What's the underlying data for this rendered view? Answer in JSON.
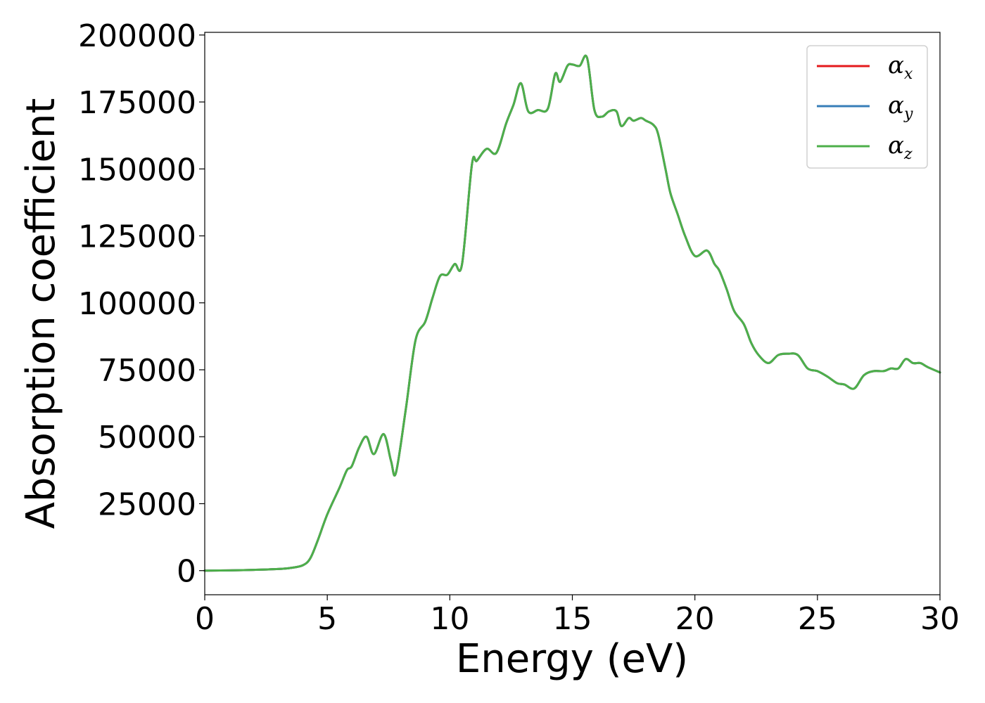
{
  "chart_data": {
    "type": "line",
    "title": "",
    "xlabel": "Energy (eV)",
    "ylabel": "Absorption coefficient",
    "xlim": [
      0,
      30
    ],
    "ylim": [
      -9000,
      201000
    ],
    "xticks": [
      "0",
      "5",
      "10",
      "15",
      "20",
      "25",
      "30"
    ],
    "yticks": [
      "0",
      "25000",
      "50000",
      "75000",
      "100000",
      "125000",
      "150000",
      "175000",
      "200000"
    ],
    "grid": false,
    "legend_position": "top-right",
    "series": [
      {
        "name": "α_x",
        "symbol": "α",
        "subscript": "x",
        "color": "#e41a1c",
        "x": [
          0,
          1,
          2,
          3,
          3.5,
          4,
          4.3,
          4.6,
          5.0,
          5.5,
          5.8,
          6.0,
          6.3,
          6.6,
          6.9,
          7.3,
          7.6,
          7.8,
          8.2,
          8.6,
          9.0,
          9.3,
          9.6,
          9.9,
          10.2,
          10.5,
          10.9,
          11.1,
          11.5,
          11.9,
          12.3,
          12.6,
          12.9,
          13.2,
          13.6,
          14.0,
          14.3,
          14.5,
          14.8,
          15.0,
          15.3,
          15.6,
          15.9,
          16.2,
          16.5,
          16.8,
          17.0,
          17.3,
          17.5,
          17.8,
          18.0,
          18.3,
          18.5,
          18.8,
          19.0,
          19.3,
          19.6,
          20.0,
          20.5,
          20.8,
          21.0,
          21.3,
          21.6,
          22.0,
          22.3,
          22.6,
          23.0,
          23.4,
          23.8,
          24.2,
          24.6,
          25.0,
          25.4,
          25.8,
          26.1,
          26.5,
          26.9,
          27.3,
          27.7,
          28.0,
          28.3,
          28.6,
          28.9,
          29.2,
          29.5,
          30.0
        ],
        "values": [
          0,
          100,
          300,
          600,
          1000,
          2000,
          4500,
          11000,
          21000,
          31000,
          37500,
          39000,
          46000,
          50000,
          43500,
          51000,
          41000,
          36500,
          60000,
          86000,
          93000,
          102000,
          110000,
          110500,
          114500,
          114500,
          151500,
          153000,
          157500,
          156000,
          167000,
          174000,
          182000,
          171500,
          172000,
          172500,
          185500,
          182500,
          188500,
          189000,
          188500,
          191500,
          172000,
          169500,
          171500,
          171500,
          166000,
          169000,
          168000,
          169000,
          168000,
          166500,
          163000,
          150000,
          141000,
          133000,
          125000,
          117500,
          119500,
          114500,
          112000,
          105000,
          97000,
          92000,
          85000,
          80500,
          77500,
          80500,
          81000,
          80500,
          75500,
          74500,
          72500,
          70000,
          69500,
          68000,
          73000,
          74500,
          74500,
          75500,
          75500,
          79000,
          77500,
          77500,
          76000,
          74000
        ]
      },
      {
        "name": "α_y",
        "symbol": "α",
        "subscript": "y",
        "color": "#377eb8",
        "x": [
          0,
          1,
          2,
          3,
          3.5,
          4,
          4.3,
          4.6,
          5.0,
          5.5,
          5.8,
          6.0,
          6.3,
          6.6,
          6.9,
          7.3,
          7.6,
          7.8,
          8.2,
          8.6,
          9.0,
          9.3,
          9.6,
          9.9,
          10.2,
          10.5,
          10.9,
          11.1,
          11.5,
          11.9,
          12.3,
          12.6,
          12.9,
          13.2,
          13.6,
          14.0,
          14.3,
          14.5,
          14.8,
          15.0,
          15.3,
          15.6,
          15.9,
          16.2,
          16.5,
          16.8,
          17.0,
          17.3,
          17.5,
          17.8,
          18.0,
          18.3,
          18.5,
          18.8,
          19.0,
          19.3,
          19.6,
          20.0,
          20.5,
          20.8,
          21.0,
          21.3,
          21.6,
          22.0,
          22.3,
          22.6,
          23.0,
          23.4,
          23.8,
          24.2,
          24.6,
          25.0,
          25.4,
          25.8,
          26.1,
          26.5,
          26.9,
          27.3,
          27.7,
          28.0,
          28.3,
          28.6,
          28.9,
          29.2,
          29.5,
          30.0
        ],
        "values": [
          0,
          100,
          300,
          600,
          1000,
          2000,
          4500,
          11000,
          21000,
          31000,
          37500,
          39000,
          46000,
          50000,
          43500,
          51000,
          41000,
          36500,
          60000,
          86000,
          93000,
          102000,
          110000,
          110500,
          114500,
          114500,
          151500,
          153000,
          157500,
          156000,
          167000,
          174000,
          182000,
          171500,
          172000,
          172500,
          185500,
          182500,
          188500,
          189000,
          188500,
          191500,
          172000,
          169500,
          171500,
          171500,
          166000,
          169000,
          168000,
          169000,
          168000,
          166500,
          163000,
          150000,
          141000,
          133000,
          125000,
          117500,
          119500,
          114500,
          112000,
          105000,
          97000,
          92000,
          85000,
          80500,
          77500,
          80500,
          81000,
          80500,
          75500,
          74500,
          72500,
          70000,
          69500,
          68000,
          73000,
          74500,
          74500,
          75500,
          75500,
          79000,
          77500,
          77500,
          76000,
          74000
        ]
      },
      {
        "name": "α_z",
        "symbol": "α",
        "subscript": "z",
        "color": "#4daf4a",
        "x": [
          0,
          1,
          2,
          3,
          3.5,
          4,
          4.3,
          4.6,
          5.0,
          5.5,
          5.8,
          6.0,
          6.3,
          6.6,
          6.9,
          7.3,
          7.6,
          7.8,
          8.2,
          8.6,
          9.0,
          9.3,
          9.6,
          9.9,
          10.2,
          10.5,
          10.9,
          11.1,
          11.5,
          11.9,
          12.3,
          12.6,
          12.9,
          13.2,
          13.6,
          14.0,
          14.3,
          14.5,
          14.8,
          15.0,
          15.3,
          15.6,
          15.9,
          16.2,
          16.5,
          16.8,
          17.0,
          17.3,
          17.5,
          17.8,
          18.0,
          18.3,
          18.5,
          18.8,
          19.0,
          19.3,
          19.6,
          20.0,
          20.5,
          20.8,
          21.0,
          21.3,
          21.6,
          22.0,
          22.3,
          22.6,
          23.0,
          23.4,
          23.8,
          24.2,
          24.6,
          25.0,
          25.4,
          25.8,
          26.1,
          26.5,
          26.9,
          27.3,
          27.7,
          28.0,
          28.3,
          28.6,
          28.9,
          29.2,
          29.5,
          30.0
        ],
        "values": [
          0,
          100,
          300,
          600,
          1000,
          2000,
          4500,
          11000,
          21000,
          31000,
          37500,
          39000,
          46000,
          50000,
          43500,
          51000,
          41000,
          36500,
          60000,
          86000,
          93000,
          102000,
          110000,
          110500,
          114500,
          114500,
          151500,
          153000,
          157500,
          156000,
          167000,
          174000,
          182000,
          171500,
          172000,
          172500,
          185500,
          182500,
          188500,
          189000,
          188500,
          191500,
          172000,
          169500,
          171500,
          171500,
          166000,
          169000,
          168000,
          169000,
          168000,
          166500,
          163000,
          150000,
          141000,
          133000,
          125000,
          117500,
          119500,
          114500,
          112000,
          105000,
          97000,
          92000,
          85000,
          80500,
          77500,
          80500,
          81000,
          80500,
          75500,
          74500,
          72500,
          70000,
          69500,
          68000,
          73000,
          74500,
          74500,
          75500,
          75500,
          79000,
          77500,
          77500,
          76000,
          74000
        ]
      }
    ]
  }
}
